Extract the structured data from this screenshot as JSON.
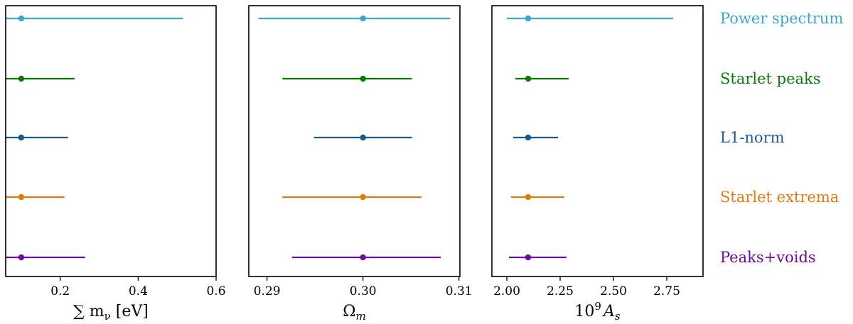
{
  "chart_data": {
    "type": "errorbar",
    "series": [
      {
        "name": "Power spectrum",
        "color": "#3ea5c8"
      },
      {
        "name": "Starlet peaks",
        "color": "#0b7a0b"
      },
      {
        "name": "L1-norm",
        "color": "#1f5a85"
      },
      {
        "name": "Starlet extrema",
        "color": "#e07b10"
      },
      {
        "name": "Peaks+voids",
        "color": "#6e0d93"
      }
    ],
    "panels": [
      {
        "xlabel_main": "∑ m",
        "xlabel_sub": "ν",
        "xlabel_tail": " [eV]",
        "xlim": [
          0.06,
          0.6
        ],
        "ticks": [
          0.2,
          0.4,
          0.6
        ],
        "tick_labels": [
          "0.2",
          "0.4",
          "0.6"
        ],
        "points": [
          {
            "value": 0.1,
            "lower": 0.06,
            "upper": 0.515
          },
          {
            "value": 0.1,
            "lower": 0.06,
            "upper": 0.237
          },
          {
            "value": 0.1,
            "lower": 0.06,
            "upper": 0.22
          },
          {
            "value": 0.1,
            "lower": 0.06,
            "upper": 0.211
          },
          {
            "value": 0.1,
            "lower": 0.06,
            "upper": 0.264
          }
        ]
      },
      {
        "xlabel_main": "Ω",
        "xlabel_sub": "m",
        "xlabel_tail": "",
        "xlim": [
          0.2881,
          0.3101
        ],
        "ticks": [
          0.29,
          0.3,
          0.31
        ],
        "tick_labels": [
          "0.29",
          "0.30",
          "0.31"
        ],
        "points": [
          {
            "value": 0.3,
            "lower": 0.2891,
            "upper": 0.3091
          },
          {
            "value": 0.3,
            "lower": 0.2916,
            "upper": 0.3051
          },
          {
            "value": 0.3,
            "lower": 0.2949,
            "upper": 0.3051
          },
          {
            "value": 0.3,
            "lower": 0.2916,
            "upper": 0.3061
          },
          {
            "value": 0.3,
            "lower": 0.2926,
            "upper": 0.3081
          }
        ]
      },
      {
        "xlabel_main": "10",
        "xlabel_sup": "9",
        "xlabel_tail_italic": "A",
        "xlabel_sub": "s",
        "xlim": [
          1.93,
          2.92
        ],
        "ticks": [
          2.0,
          2.25,
          2.5,
          2.75
        ],
        "tick_labels": [
          "2.00",
          "2.25",
          "2.50",
          "2.75"
        ],
        "points": [
          {
            "value": 2.1,
            "lower": 2.0,
            "upper": 2.78
          },
          {
            "value": 2.1,
            "lower": 2.04,
            "upper": 2.29
          },
          {
            "value": 2.1,
            "lower": 2.03,
            "upper": 2.24
          },
          {
            "value": 2.1,
            "lower": 2.02,
            "upper": 2.27
          },
          {
            "value": 2.1,
            "lower": 2.01,
            "upper": 2.28
          }
        ]
      }
    ],
    "grid": false,
    "legend_placement": "right"
  }
}
